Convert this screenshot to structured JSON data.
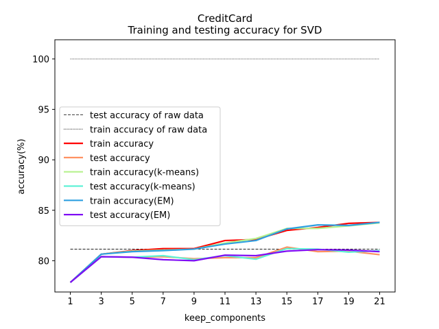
{
  "chart_data": {
    "type": "line",
    "title": "CreditCard",
    "subtitle": "Training and testing accuracy for SVD",
    "xlabel": "keep_components",
    "ylabel": "accuracy(%)",
    "x": [
      1,
      3,
      5,
      7,
      9,
      11,
      13,
      15,
      17,
      19,
      21
    ],
    "xticks": [
      "1",
      "3",
      "5",
      "7",
      "9",
      "11",
      "13",
      "15",
      "17",
      "19",
      "21"
    ],
    "yticks": [
      "80",
      "85",
      "90",
      "95",
      "100"
    ],
    "xlim": [
      0,
      22
    ],
    "ylim": [
      76.9,
      101.9
    ],
    "grid": false,
    "legend_position": "center-left",
    "reference_lines": [
      {
        "name": "test accuracy of raw data",
        "y": 81.15,
        "style": "dashed",
        "color": "#000000"
      },
      {
        "name": "train accuracy of raw data",
        "y": 100.0,
        "style": "dotted",
        "color": "#000000"
      }
    ],
    "series": [
      {
        "name": "train accuracy",
        "color": "#ff0000",
        "values": [
          77.85,
          80.65,
          81.0,
          81.2,
          81.2,
          82.0,
          82.1,
          83.0,
          83.3,
          83.7,
          83.8
        ]
      },
      {
        "name": "test accuracy",
        "color": "#ff9060",
        "values": [
          77.85,
          80.4,
          80.35,
          80.4,
          80.2,
          80.3,
          80.3,
          81.35,
          80.9,
          80.95,
          80.6
        ]
      },
      {
        "name": "train accuracy(k-means)",
        "color": "#b6f28e",
        "values": [
          77.85,
          80.65,
          80.95,
          81.05,
          81.15,
          81.75,
          82.2,
          83.2,
          83.2,
          83.45,
          83.75
        ]
      },
      {
        "name": "test accuracy(k-means)",
        "color": "#5ff2d6",
        "values": [
          77.85,
          80.4,
          80.35,
          80.5,
          80.1,
          80.5,
          80.15,
          81.2,
          81.15,
          80.85,
          81.0
        ]
      },
      {
        "name": "train accuracy(EM)",
        "color": "#2d9fe0",
        "values": [
          77.85,
          80.65,
          80.9,
          81.0,
          81.15,
          81.65,
          82.0,
          83.15,
          83.55,
          83.5,
          83.8
        ]
      },
      {
        "name": "test accuracy(EM)",
        "color": "#7f0cf4",
        "values": [
          77.85,
          80.4,
          80.35,
          80.1,
          80.0,
          80.55,
          80.5,
          80.95,
          81.1,
          81.05,
          80.9
        ]
      }
    ]
  }
}
